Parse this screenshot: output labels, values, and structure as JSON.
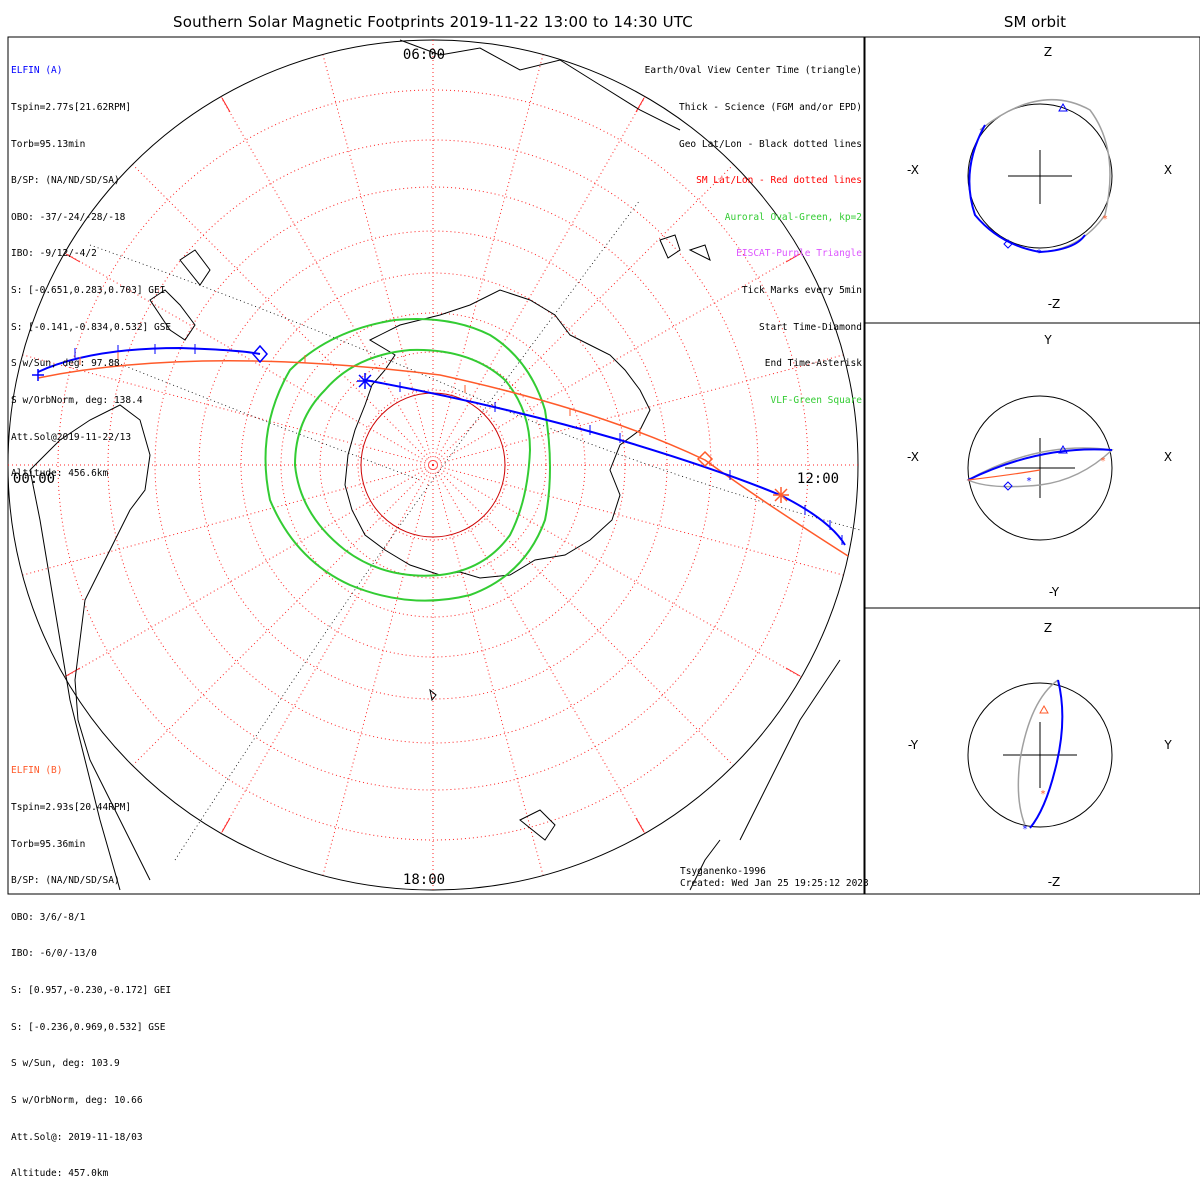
{
  "title": "Southern Solar Magnetic Footprints 2019-11-22 13:00 to 14:30 UTC",
  "sm_orbit_title": "SM orbit",
  "mlt_labels": {
    "top": "06:00",
    "right": "12:00",
    "bottom": "18:00",
    "left": "00:00"
  },
  "elfin_a": {
    "name": "ELFIN (A)",
    "color": "#0000ff",
    "lines": [
      "Tspin=2.77s[21.62RPM]",
      "Torb=95.13min",
      "B/SP: (NA/ND/SD/SA)",
      "OBO: -37/-24/-28/-18",
      "IBO: -9/12/-4/2",
      "S: [-0.651,0.283,0.703] GEI",
      "S: [-0.141,-0.834,0.532] GSE",
      "S w/Sun, deg: 97.88",
      "S w/OrbNorm, deg: 138.4",
      "Att.Sol@2019-11-22/13",
      "Altitude: 456.6km"
    ]
  },
  "elfin_b": {
    "name": "ELFIN (B)",
    "color": "#ff5a2a",
    "lines": [
      "Tspin=2.93s[20.44RPM]",
      "Torb=95.36min",
      "B/SP: (NA/ND/SD/SA)",
      "OBO: 3/6/-8/1",
      "IBO: -6/0/-13/0",
      "S: [0.957,-0.230,-0.172] GEI",
      "S: [-0.236,0.969,0.532] GSE",
      "S w/Sun, deg: 103.9",
      "S w/OrbNorm, deg: 10.66",
      "Att.Sol@: 2019-11-18/03",
      "Altitude: 457.0km"
    ]
  },
  "legend": [
    {
      "text": "Earth/Oval View Center Time (triangle)",
      "color": "#000000"
    },
    {
      "text": "Thick - Science (FGM and/or EPD)",
      "color": "#000000"
    },
    {
      "text": "Geo Lat/Lon - Black dotted lines",
      "color": "#000000"
    },
    {
      "text": "SM Lat/Lon - Red dotted lines",
      "color": "#ff0000"
    },
    {
      "text": "Auroral Oval-Green, kp=2",
      "color": "#33cc33"
    },
    {
      "text": "EISCAT-Purple Triangle",
      "color": "#dd55ff"
    },
    {
      "text": "Tick Marks every 5min",
      "color": "#000000"
    },
    {
      "text": "Start Time-Diamond",
      "color": "#000000"
    },
    {
      "text": "End Time-Asterisk",
      "color": "#000000"
    },
    {
      "text": "VLF-Green Square",
      "color": "#33cc33"
    }
  ],
  "credit": {
    "model": "Tsyganenko-1996",
    "created": "Created: Wed Jan 25 19:25:12 2023"
  },
  "orbit_panels": [
    {
      "top": "Z",
      "bottom": "-Z",
      "left": "-X",
      "right": "X"
    },
    {
      "top": "Y",
      "bottom": "-Y",
      "left": "-X",
      "right": "X"
    },
    {
      "top": "Z",
      "bottom": "-Z",
      "left": "-Y",
      "right": "Y"
    }
  ],
  "colors": {
    "elfin_a": "#0000ff",
    "elfin_b": "#ff5a2a",
    "oval": "#33cc33",
    "sm_grid": "#ff0000",
    "geo_grid": "#000000",
    "orbit_gray": "#a0a0a0"
  }
}
